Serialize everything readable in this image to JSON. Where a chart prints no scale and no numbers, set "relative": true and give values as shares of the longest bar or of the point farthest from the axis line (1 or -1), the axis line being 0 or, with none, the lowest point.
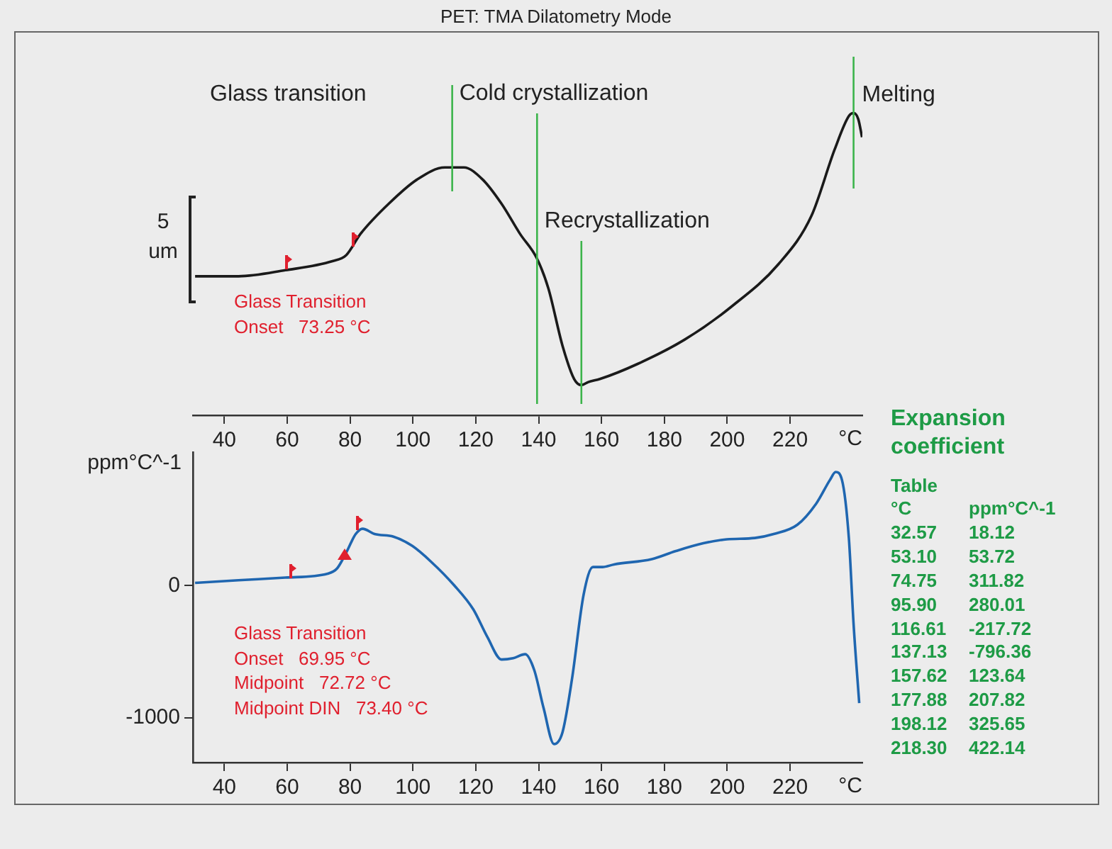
{
  "chart_data": [
    {
      "type": "line",
      "title": "PET: TMA Dilatometry Mode",
      "ylabel": "5 um",
      "xlabel": "°C",
      "relative": true,
      "x": [
        30.7,
        44.5,
        59.4,
        74.4,
        78.8,
        83.3,
        92.3,
        101.3,
        110.2,
        116.2,
        122.2,
        128.2,
        134.1,
        139.4,
        143.1,
        147.6,
        151.3,
        153.6,
        155.8,
        159.5,
        171.5,
        186.4,
        201.4,
        216.3,
        226.8,
        234.2,
        238.7,
        240.2,
        241.7,
        242.9
      ],
      "series": [
        {
          "color": "#1a1a1a",
          "values": [
            0.46,
            0.46,
            0.48,
            0.51,
            0.53,
            0.6,
            0.7,
            0.78,
            0.82,
            0.82,
            0.78,
            0.7,
            0.6,
            0.52,
            0.42,
            0.23,
            0.12,
            0.1,
            0.11,
            0.12,
            0.17,
            0.25,
            0.36,
            0.5,
            0.66,
            0.88,
            0.99,
            1,
            0.98,
            0.92
          ]
        }
      ],
      "xlim": [
        30,
        243
      ],
      "xticks": [
        40,
        60,
        80,
        100,
        120,
        140,
        160,
        180,
        200,
        220
      ],
      "ref_lines": [
        {
          "axis": "x",
          "value": 112.5,
          "label": "Cold crystallization",
          "color": "#3cb44b"
        },
        {
          "axis": "x",
          "value": 139.5,
          "color": "#3cb44b"
        },
        {
          "axis": "x",
          "value": 153.6,
          "label": "Recrystallization",
          "color": "#3cb44b"
        },
        {
          "axis": "x",
          "value": 240.2,
          "label": "Melting",
          "color": "#3cb44b"
        }
      ],
      "annotations": [
        "Glass transition",
        "Glass Transition\nOnset   73.25 °C"
      ]
    },
    {
      "type": "line",
      "ylabel": "ppm°C^-1",
      "xlabel": "°C",
      "x": [
        30.7,
        44.5,
        59.4,
        72.9,
        75.9,
        78.8,
        81.8,
        84,
        87.8,
        93.8,
        99.8,
        105.8,
        113.2,
        119.2,
        123.7,
        128.2,
        131.9,
        135.7,
        138.6,
        141.6,
        144.9,
        147.6,
        150.6,
        154.3,
        157.3,
        160.3,
        164,
        176,
        183.5,
        192.4,
        199.9,
        208.8,
        214.8,
        222.3,
        228.3,
        232.7,
        234.5,
        236.5,
        238.7,
        240.2,
        242
      ],
      "series": [
        {
          "color": "#1f66b0",
          "values": [
            20,
            40,
            60,
            90,
            130,
            250,
            390,
            430,
            390,
            370,
            300,
            180,
            0,
            -180,
            -390,
            -560,
            -550,
            -520,
            -640,
            -930,
            -1200,
            -1110,
            -710,
            -70,
            140,
            140,
            160,
            200,
            260,
            320,
            350,
            360,
            390,
            460,
            620,
            800,
            860,
            800,
            360,
            -290,
            -890
          ]
        }
      ],
      "xlim": [
        30,
        243
      ],
      "xticks": [
        40,
        60,
        80,
        100,
        120,
        140,
        160,
        180,
        200,
        220
      ],
      "ylim": [
        -1340,
        1010
      ],
      "yticks": [
        -1000,
        0
      ],
      "annotations": [
        "Glass Transition\nOnset   69.95 °C\nMidpoint   72.72 °C\nMidpoint DIN   73.40 °C"
      ]
    },
    {
      "type": "other",
      "title": "Expansion coefficient",
      "subtitle": "Table",
      "xlabel": "°C",
      "ylabel": "ppm°C^-1",
      "color": "#1e9b46",
      "data_labels": true,
      "categories": [
        "32.57",
        "53.10",
        "74.75",
        "95.90",
        "116.61",
        "137.13",
        "157.62",
        "177.88",
        "198.12",
        "218.30"
      ],
      "values": [
        18.12,
        53.72,
        311.82,
        280.01,
        -217.72,
        -796.36,
        123.64,
        207.82,
        325.65,
        422.14
      ]
    }
  ]
}
